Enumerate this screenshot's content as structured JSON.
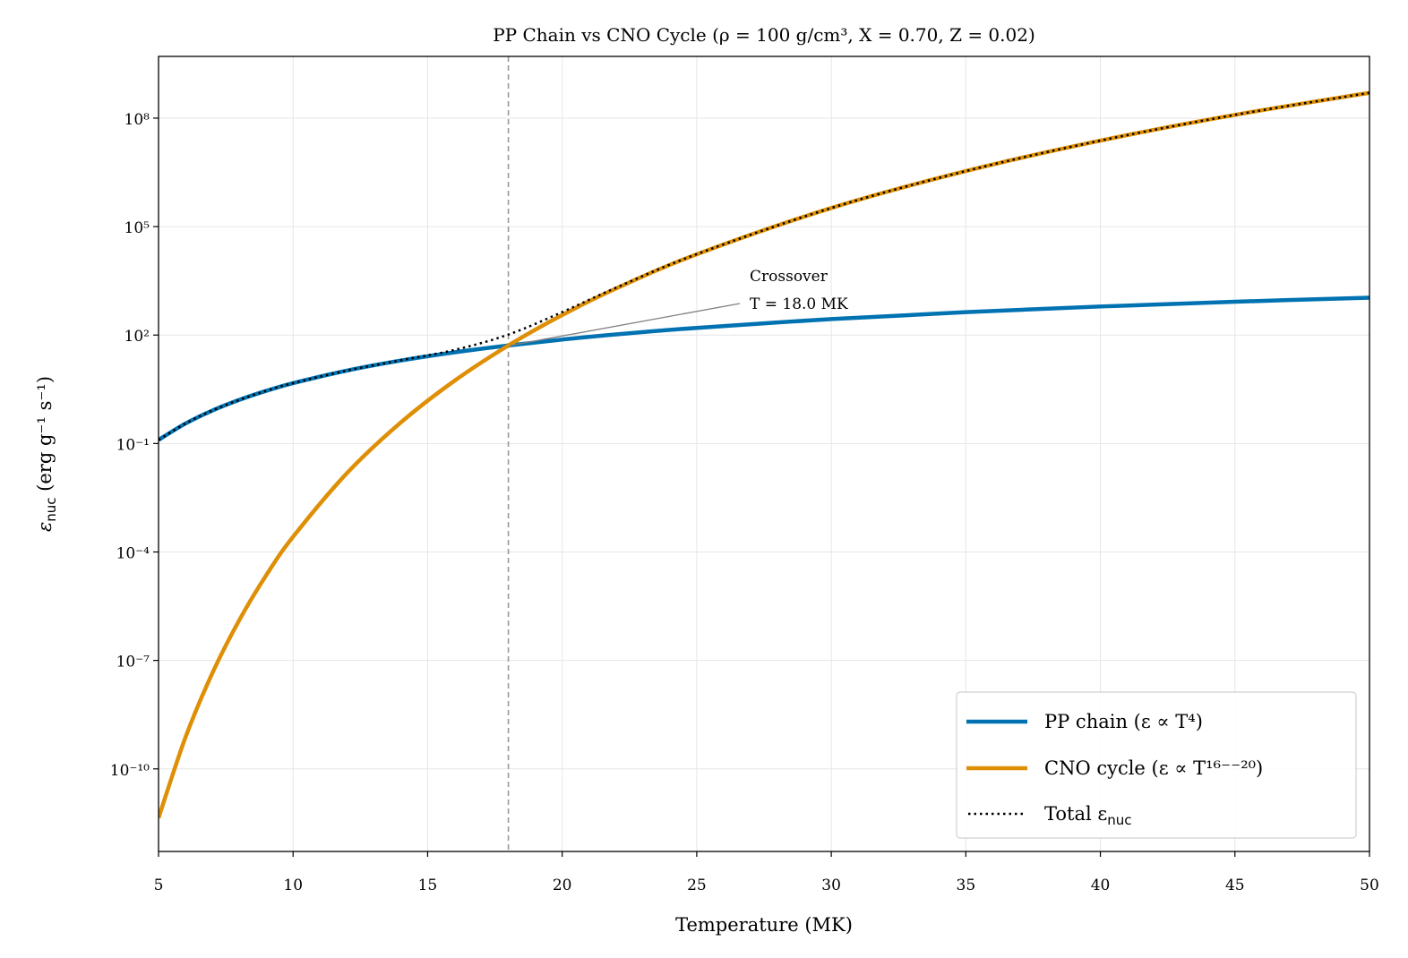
{
  "chart_data": {
    "type": "line",
    "title": "PP Chain vs CNO Cycle (ρ = 100 g/cm³, X = 0.70, Z = 0.02)",
    "xlabel": "Temperature (MK)",
    "ylabel": {
      "symbol": "ε",
      "sub": "nuc",
      "rest": " (erg g⁻¹ s⁻¹)"
    },
    "xlim": [
      5,
      50
    ],
    "ylim": [
      5.2e-13,
      5100000000.0
    ],
    "yscale": "log",
    "grid": true,
    "legend_position": "bottom-right",
    "x_ticks": [
      5,
      10,
      15,
      20,
      25,
      30,
      35,
      40,
      45,
      50
    ],
    "x_tick_labels": [
      "5",
      "10",
      "15",
      "20",
      "25",
      "30",
      "35",
      "40",
      "45",
      "50"
    ],
    "y_ticks": [
      100000000.0,
      100000.0,
      100.0,
      0.1,
      0.0001,
      1e-07,
      1e-10
    ],
    "y_tick_labels": [
      "10⁸",
      "10⁵",
      "10²",
      "10⁻¹",
      "10⁻⁴",
      "10⁻⁷",
      "10⁻¹⁰"
    ],
    "x": [
      5,
      6,
      7,
      8,
      9,
      10,
      12,
      14,
      16,
      18,
      20,
      22,
      25,
      30,
      35,
      40,
      45,
      50
    ],
    "series": [
      {
        "name": "PP chain (ε ∝ T⁴)",
        "color": "#0072B2",
        "style": "solid",
        "values": [
          0.126,
          0.357,
          0.818,
          1.61,
          2.86,
          4.68,
          10.4,
          19.7,
          33.3,
          51.5,
          75.0,
          104,
          158,
          276,
          430,
          617,
          834,
          1080
        ]
      },
      {
        "name": "CNO cycle (ε ∝ T¹⁶⁻⁻²⁰)",
        "color": "#DE8F05",
        "style": "solid",
        "values": [
          4.39e-12,
          7.41e-10,
          4.46e-08,
          1.3e-06,
          2.26e-05,
          0.000263,
          0.0151,
          0.38,
          5.45,
          51.5,
          357,
          1936,
          17100.0,
          327000.0,
          3440000.0,
          23900000.0,
          123000000.0,
          501000000.0
        ]
      },
      {
        "name": "Total εnuc",
        "legend_main": "Total ε",
        "legend_sub": "nuc",
        "color": "#000000",
        "style": "dotted",
        "values": [
          0.126,
          0.357,
          0.818,
          1.61,
          2.86,
          4.68,
          10.4,
          20.1,
          38.8,
          103,
          432,
          2040,
          17300.0,
          327000.0,
          3440000.0,
          23900000.0,
          123000000.0,
          501000000.0
        ]
      }
    ],
    "crossover": {
      "x": 18.0,
      "line_color": "#999999",
      "style": "dashed"
    },
    "annotation": {
      "line1": "Crossover",
      "line2": "T = 18.0 MK",
      "x": 18.0,
      "y": 51.5
    }
  }
}
